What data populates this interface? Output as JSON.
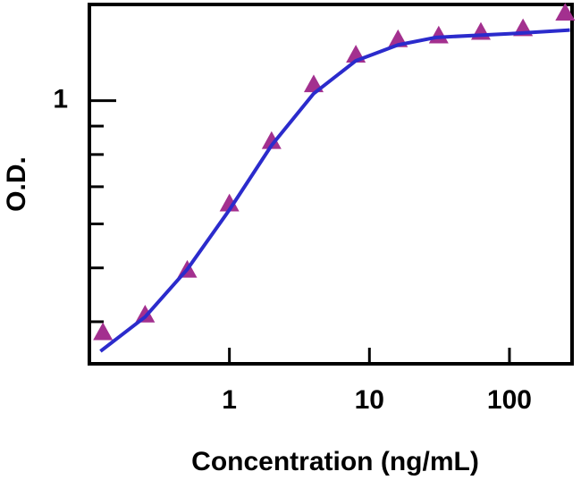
{
  "chart_data": {
    "type": "scatter",
    "x_label": "Concentration (ng/mL)",
    "y_label": "O.D.",
    "xscale": "log",
    "yscale": "log",
    "xlim": [
      0.1,
      280
    ],
    "ylim": [
      0.336,
      1.49
    ],
    "xticks": [
      1,
      10,
      100
    ],
    "yticks": [
      1
    ],
    "yminor": [
      0.9,
      0.8,
      0.7,
      0.6,
      0.5,
      0.4
    ],
    "series": [
      {
        "mode": "markers",
        "marker": "triangle",
        "color": "#a3308f",
        "x": [
          0.125,
          0.25,
          0.5,
          1,
          2,
          4,
          8,
          16,
          31.25,
          62.5,
          125,
          250
        ],
        "values": [
          0.383,
          0.412,
          0.496,
          0.653,
          0.846,
          1.07,
          1.21,
          1.29,
          1.31,
          1.33,
          1.35,
          1.44
        ]
      },
      {
        "mode": "line",
        "color": "#2b2bcc",
        "x": [
          0.12,
          0.25,
          0.5,
          1,
          2,
          4,
          8,
          16,
          30,
          100,
          270
        ],
        "values": [
          0.354,
          0.408,
          0.497,
          0.636,
          0.831,
          1.03,
          1.18,
          1.26,
          1.3,
          1.32,
          1.34
        ]
      }
    ]
  }
}
